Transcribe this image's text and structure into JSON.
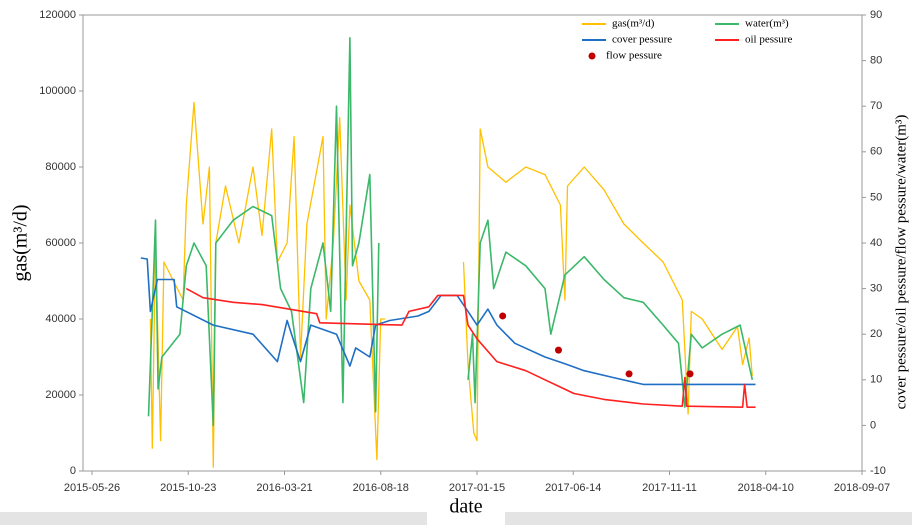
{
  "chart_data": {
    "type": "line",
    "x_label": "date",
    "y_label": "gas(m³/d)",
    "y2_label": "cover pessure/oil pessure/flow pessure/water(m³)",
    "xlim": [
      "2015-05-12",
      "2018-09-07"
    ],
    "xticks": [
      "2015-05-26",
      "2015-10-23",
      "2016-03-21",
      "2016-08-18",
      "2017-01-15",
      "2017-06-14",
      "2017-11-11",
      "2018-04-10",
      "2018-09-07"
    ],
    "ylim": [
      0,
      120000
    ],
    "yticks": [
      0,
      20000,
      40000,
      60000,
      80000,
      100000,
      120000
    ],
    "y2lim": [
      -10,
      90
    ],
    "y2ticks": [
      -10,
      0,
      10,
      20,
      30,
      40,
      50,
      60,
      70,
      80,
      90
    ],
    "grid": false,
    "legend": "upper right",
    "series": [
      {
        "name": "gas(m³/d)",
        "color": "#ffc000",
        "axis": "y",
        "mode": "line",
        "x": [
          "2015-08-25",
          "2015-08-28",
          "2015-09-02",
          "2015-09-10",
          "2015-09-15",
          "2015-10-15",
          "2015-10-20",
          "2015-11-01",
          "2015-11-15",
          "2015-11-25",
          "2015-12-01",
          "2015-12-05",
          "2015-12-20",
          "2016-01-10",
          "2016-02-01",
          "2016-02-15",
          "2016-03-01",
          "2016-03-10",
          "2016-03-25",
          "2016-04-05",
          "2016-04-15",
          "2016-04-25",
          "2016-05-20",
          "2016-05-25",
          "2016-06-05",
          "2016-06-15",
          "2016-06-25",
          "2016-07-01",
          "2016-07-15",
          "2016-08-01",
          "2016-08-12",
          "2016-08-18",
          "2016-08-25",
          "2016-10-01",
          "2016-12-25",
          "2017-01-01",
          "2017-01-10",
          "2017-01-15",
          "2017-01-20",
          "2017-02-01",
          "2017-03-01",
          "2017-04-01",
          "2017-05-01",
          "2017-05-25",
          "2017-06-01",
          "2017-06-05",
          "2017-07-01",
          "2017-08-01",
          "2017-09-01",
          "2017-10-01",
          "2017-11-01",
          "2017-12-01",
          "2017-12-10",
          "2017-12-15",
          "2018-01-01",
          "2018-02-01",
          "2018-02-25",
          "2018-03-05",
          "2018-03-15",
          "2018-03-20"
        ],
        "values": [
          40000,
          6000,
          60000,
          8000,
          55000,
          45000,
          70000,
          97000,
          65000,
          80000,
          1000,
          60000,
          75000,
          60000,
          80000,
          62000,
          90000,
          55000,
          60000,
          88000,
          30000,
          65000,
          88000,
          40000,
          60000,
          93000,
          45000,
          70000,
          50000,
          45000,
          3000,
          40000,
          40000,
          null,
          55000,
          28000,
          10000,
          8000,
          90000,
          80000,
          76000,
          80000,
          78000,
          70000,
          45000,
          75000,
          80000,
          74000,
          65000,
          60000,
          55000,
          45000,
          15000,
          42000,
          40000,
          32000,
          38000,
          28000,
          35000,
          25000
        ]
      },
      {
        "name": "water(m³)",
        "color": "#3cb86a",
        "axis": "y2",
        "mode": "line",
        "x": [
          "2015-08-22",
          "2015-08-28",
          "2015-09-02",
          "2015-09-06",
          "2015-09-12",
          "2015-10-10",
          "2015-10-20",
          "2015-11-01",
          "2015-11-20",
          "2015-12-01",
          "2015-12-05",
          "2016-01-01",
          "2016-02-01",
          "2016-03-01",
          "2016-03-15",
          "2016-04-01",
          "2016-04-20",
          "2016-05-01",
          "2016-05-20",
          "2016-06-01",
          "2016-06-10",
          "2016-06-20",
          "2016-07-01",
          "2016-07-05",
          "2016-07-15",
          "2016-08-01",
          "2016-08-10",
          "2016-08-15",
          "2016-10-01",
          "2017-01-01",
          "2017-01-08",
          "2017-01-12",
          "2017-01-20",
          "2017-02-01",
          "2017-02-10",
          "2017-03-01",
          "2017-04-01",
          "2017-05-01",
          "2017-05-10",
          "2017-06-01",
          "2017-07-01",
          "2017-08-01",
          "2017-09-01",
          "2017-10-01",
          "2017-11-01",
          "2017-11-25",
          "2017-12-05",
          "2017-12-15",
          "2018-01-01",
          "2018-02-01",
          "2018-03-01",
          "2018-03-20"
        ],
        "values": [
          2,
          25,
          45,
          8,
          15,
          20,
          35,
          40,
          35,
          0,
          40,
          45,
          48,
          46,
          30,
          25,
          5,
          30,
          40,
          25,
          70,
          5,
          85,
          35,
          40,
          55,
          3,
          40,
          null,
          10,
          20,
          5,
          40,
          45,
          30,
          38,
          35,
          30,
          20,
          33,
          37,
          32,
          28,
          27,
          22,
          18,
          4,
          20,
          17,
          20,
          22,
          10
        ]
      },
      {
        "name": "cover pessure",
        "color": "#1f6fc5",
        "axis": "y2",
        "mode": "line",
        "x": [
          "2015-08-10",
          "2015-08-20",
          "2015-08-25",
          "2015-09-05",
          "2015-10-01",
          "2015-10-05",
          "2015-12-01",
          "2016-02-01",
          "2016-03-10",
          "2016-03-25",
          "2016-04-15",
          "2016-05-01",
          "2016-06-10",
          "2016-07-01",
          "2016-07-10",
          "2016-08-01",
          "2016-08-10",
          "2016-09-01",
          "2016-10-15",
          "2016-11-01",
          "2016-11-20",
          "2016-12-15",
          "2017-01-01",
          "2017-01-15",
          "2017-02-01",
          "2017-02-15",
          "2017-03-15",
          "2017-05-01",
          "2017-06-01",
          "2017-07-01",
          "2017-08-15",
          "2017-10-01",
          "2018-01-01",
          "2018-03-25"
        ],
        "values": [
          36.7,
          36.5,
          25,
          32,
          32,
          26,
          22,
          20,
          14,
          23,
          14,
          22,
          20,
          13,
          17,
          15,
          22,
          23,
          24,
          25,
          28.5,
          28.5,
          25,
          22,
          25.5,
          22,
          18,
          15,
          13.5,
          12,
          10.5,
          9,
          9,
          9
        ]
      },
      {
        "name": "oil pessure",
        "color": "#ff2020",
        "axis": "y2",
        "mode": "line",
        "x": [
          "2015-10-20",
          "2015-11-15",
          "2016-01-01",
          "2016-02-15",
          "2016-05-10",
          "2016-05-15",
          "2016-09-20",
          "2016-10-01",
          "2016-11-01",
          "2016-11-15",
          "2016-12-25",
          "2017-01-01",
          "2017-01-15",
          "2017-02-15",
          "2017-04-01",
          "2017-05-01",
          "2017-06-15",
          "2017-08-01",
          "2017-10-01",
          "2017-12-01",
          "2017-12-05",
          "2017-12-08",
          "2018-03-05",
          "2018-03-08",
          "2018-03-12",
          "2018-03-25"
        ],
        "values": [
          30,
          28,
          27,
          26.5,
          24.5,
          22.5,
          22,
          25,
          26,
          28.5,
          28.5,
          22,
          19,
          14,
          12,
          10,
          7,
          5.7,
          4.7,
          4.2,
          10.5,
          4.2,
          4,
          9,
          4,
          4
        ]
      },
      {
        "name": "flow pessure",
        "color": "#c00000",
        "axis": "y2",
        "mode": "markers",
        "x": [
          "2017-02-24",
          "2017-05-22",
          "2017-09-09",
          "2017-12-13"
        ],
        "values": [
          24,
          16.5,
          11.3,
          11.3
        ]
      }
    ]
  }
}
